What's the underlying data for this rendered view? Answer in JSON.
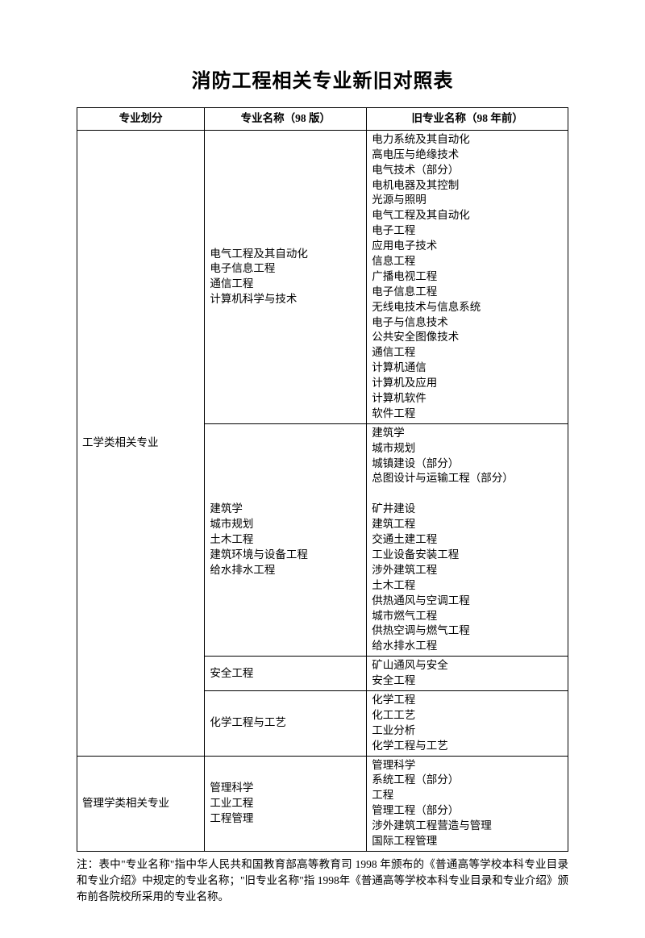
{
  "title": "消防工程相关专业新旧对照表",
  "headers": {
    "col1": "专业划分",
    "col2": "专业名称（98 版）",
    "col3": "旧专业名称（98 年前）"
  },
  "cat": {
    "eng": "工学类相关专业",
    "mgmt": "管理学类相关专业"
  },
  "g1": {
    "new": "电气工程及其自动化\n电子信息工程\n通信工程\n计算机科学与技术",
    "old": "电力系统及其自动化\n高电压与绝缘技术\n电气技术（部分）\n电机电器及其控制\n光源与照明\n电气工程及其自动化\n电子工程\n应用电子技术\n信息工程\n广播电视工程\n电子信息工程\n无线电技术与信息系统\n电子与信息技术\n公共安全图像技术\n通信工程\n计算机通信\n计算机及应用\n计算机软件\n软件工程"
  },
  "g2": {
    "new": "建筑学\n城市规划\n土木工程\n建筑环境与设备工程\n给水排水工程",
    "old": "建筑学\n城市规划\n城镇建设（部分）\n总图设计与运输工程（部分）\n\n矿井建设\n建筑工程\n交通土建工程\n工业设备安装工程\n涉外建筑工程\n土木工程\n供热通风与空调工程\n城市燃气工程\n供热空调与燃气工程\n给水排水工程"
  },
  "g3": {
    "new": "安全工程",
    "old": "矿山通风与安全\n安全工程"
  },
  "g4": {
    "new": "化学工程与工艺",
    "old": "化学工程\n化工工艺\n工业分析\n化学工程与工艺"
  },
  "g5": {
    "new": "管理科学\n工业工程\n工程管理",
    "old": "管理科学\n系统工程（部分）\n工程\n管理工程（部分）\n涉外建筑工程营造与管理\n国际工程管理"
  },
  "footnote": "注：表中\"专业名称\"指中华人民共和国教育部高等教育司 1998 年颁布的《普通高等学校本科专业目录和专业介绍》中规定的专业名称；\"旧专业名称\"指 1998年《普通高等学校本科专业目录和专业介绍》颁布前各院校所采用的专业名称。"
}
